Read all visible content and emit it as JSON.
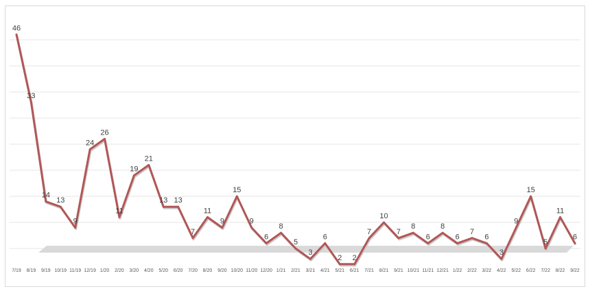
{
  "chart_data": {
    "type": "line",
    "title": "",
    "xlabel": "",
    "ylabel": "",
    "grid": true,
    "legend": "none",
    "line_color": "#b25656",
    "categories": [
      "7/19",
      "8/19",
      "9/19",
      "10/19",
      "11/19",
      "12/19",
      "1/20",
      "2/20",
      "3/20",
      "4/20",
      "5/20",
      "6/20",
      "7/20",
      "8/20",
      "9/20",
      "10/20",
      "11/20",
      "12/20",
      "1/21",
      "2/21",
      "3/21",
      "4/21",
      "5/21",
      "6/21",
      "7/21",
      "8/21",
      "9/21",
      "10/21",
      "11/21",
      "12/21",
      "1/22",
      "2/22",
      "3/22",
      "4/22",
      "5/22",
      "6/22",
      "7/22",
      "8/22",
      "9/22"
    ],
    "values": [
      46,
      33,
      14,
      13,
      9,
      24,
      26,
      11,
      19,
      21,
      13,
      13,
      7,
      11,
      9,
      15,
      9,
      6,
      8,
      5,
      3,
      6,
      2,
      2,
      7,
      10,
      7,
      8,
      6,
      8,
      6,
      7,
      6,
      3,
      9,
      15,
      5,
      11,
      6
    ],
    "value_labels": [
      "46",
      "33",
      "14",
      "13",
      "9",
      "24",
      "26",
      "11",
      "19",
      "21",
      "13",
      "13",
      "7",
      "11",
      "9",
      "15",
      "9",
      "6",
      "8",
      "5",
      "3",
      "6",
      "2",
      "2",
      "7",
      "10",
      "7",
      "8",
      "6",
      "8",
      "6",
      "7",
      "6",
      "3",
      "9",
      "15",
      "5",
      "11",
      "6"
    ],
    "ylim": [
      0,
      50
    ]
  }
}
